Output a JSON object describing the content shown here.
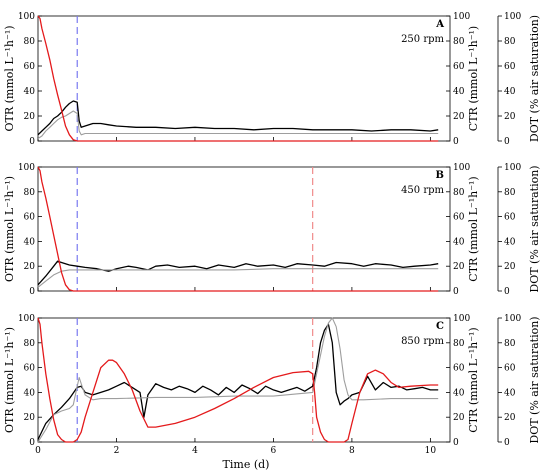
{
  "chart_data": [
    {
      "type": "line",
      "panel_label": "A",
      "annotation": "250 rpm",
      "ylabel_left": "OTR (mmol L⁻¹h⁻¹)",
      "ylabel_mid": "CTR (mmol L⁻¹h⁻¹)",
      "ylabel_right": "DOT (% air saturation)",
      "ylim": [
        0,
        100
      ],
      "xlim": [
        0,
        10.5
      ],
      "y_ticks": [
        "0",
        "20",
        "40",
        "60",
        "80",
        "100"
      ],
      "vlines": [
        {
          "x": 1.0,
          "color": "#7b7bf0"
        }
      ],
      "series": [
        {
          "key": "OTR",
          "color": "#000000",
          "x": [
            0,
            0.1,
            0.2,
            0.3,
            0.4,
            0.5,
            0.6,
            0.7,
            0.8,
            0.9,
            1.0,
            1.05,
            1.1,
            1.2,
            1.4,
            1.6,
            1.8,
            2.0,
            2.5,
            3.0,
            3.5,
            4.0,
            4.5,
            5.0,
            5.5,
            6.0,
            6.5,
            7.0,
            7.5,
            8.0,
            8.5,
            9.0,
            9.5,
            10.0,
            10.2
          ],
          "y": [
            5,
            8,
            11,
            14,
            18,
            20,
            23,
            27,
            30,
            32,
            31,
            16,
            11,
            12,
            14,
            14,
            13,
            12,
            11,
            11,
            10,
            11,
            10,
            10,
            9,
            10,
            10,
            9,
            9,
            9,
            8,
            9,
            9,
            8,
            9
          ]
        },
        {
          "key": "CTR",
          "color": "#9e9e9e",
          "x": [
            0,
            0.1,
            0.2,
            0.3,
            0.4,
            0.5,
            0.6,
            0.7,
            0.8,
            0.9,
            1.0,
            1.05,
            1.1,
            1.2,
            1.5,
            2.0,
            3.0,
            4.0,
            5.0,
            6.0,
            7.0,
            8.0,
            9.0,
            10.0,
            10.2
          ],
          "y": [
            2,
            4,
            8,
            11,
            14,
            17,
            19,
            20,
            22,
            24,
            22,
            8,
            5,
            6,
            6,
            6,
            6,
            6,
            6,
            6,
            6,
            6,
            6,
            6,
            6
          ]
        },
        {
          "key": "DOT",
          "color": "#e41a1c",
          "x": [
            0,
            0.05,
            0.1,
            0.2,
            0.3,
            0.4,
            0.5,
            0.6,
            0.7,
            0.8,
            0.9,
            1.0,
            1.1,
            1.5,
            2.0,
            3.0,
            4.0,
            5.0,
            6.0,
            7.0,
            8.0,
            9.0,
            10.0,
            10.2
          ],
          "y": [
            100,
            98,
            90,
            78,
            65,
            50,
            37,
            25,
            12,
            5,
            1,
            0,
            0,
            0,
            0,
            0,
            0,
            0,
            0,
            0,
            0,
            0,
            0,
            0
          ]
        }
      ]
    },
    {
      "type": "line",
      "panel_label": "B",
      "annotation": "450 rpm",
      "ylabel_left": "OTR (mmol L⁻¹h⁻¹)",
      "ylabel_mid": "CTR (mmol L⁻¹h⁻¹)",
      "ylabel_right": "DOT (% air saturation)",
      "ylim": [
        0,
        100
      ],
      "xlim": [
        0,
        10.5
      ],
      "y_ticks": [
        "0",
        "20",
        "40",
        "60",
        "80",
        "100"
      ],
      "vlines": [
        {
          "x": 1.0,
          "color": "#7b7bf0"
        },
        {
          "x": 7.0,
          "color": "#f08a8a"
        }
      ],
      "series": [
        {
          "key": "OTR",
          "color": "#000000",
          "x": [
            0,
            0.2,
            0.4,
            0.5,
            0.6,
            0.8,
            1.0,
            1.2,
            1.5,
            1.8,
            2.0,
            2.3,
            2.5,
            2.8,
            3.0,
            3.3,
            3.6,
            4.0,
            4.3,
            4.6,
            5.0,
            5.3,
            5.6,
            6.0,
            6.3,
            6.6,
            7.0,
            7.3,
            7.6,
            8.0,
            8.3,
            8.6,
            9.0,
            9.3,
            9.6,
            10.0,
            10.2
          ],
          "y": [
            5,
            12,
            20,
            24,
            23,
            21,
            20,
            19,
            18,
            16,
            18,
            20,
            19,
            17,
            20,
            21,
            19,
            20,
            18,
            21,
            19,
            22,
            20,
            21,
            19,
            22,
            21,
            20,
            23,
            22,
            20,
            22,
            21,
            19,
            20,
            21,
            22
          ]
        },
        {
          "key": "CTR",
          "color": "#9e9e9e",
          "x": [
            0,
            0.2,
            0.4,
            0.6,
            0.8,
            1.0,
            1.5,
            2.0,
            3.0,
            4.0,
            5.0,
            6.0,
            7.0,
            8.0,
            9.0,
            10.0,
            10.2
          ],
          "y": [
            3,
            8,
            13,
            16,
            17,
            17,
            17,
            17,
            17,
            17,
            17,
            18,
            18,
            18,
            18,
            18,
            18
          ]
        },
        {
          "key": "DOT",
          "color": "#e41a1c",
          "x": [
            0,
            0.05,
            0.1,
            0.2,
            0.3,
            0.4,
            0.5,
            0.6,
            0.7,
            0.8,
            0.9,
            1.0,
            1.5,
            2.0,
            3.0,
            4.0,
            5.0,
            6.0,
            7.0,
            8.0,
            9.0,
            10.0,
            10.2
          ],
          "y": [
            100,
            97,
            88,
            75,
            60,
            45,
            30,
            15,
            5,
            1,
            0,
            0,
            0,
            0,
            0,
            0,
            0,
            0,
            0,
            0,
            0,
            0,
            0
          ]
        }
      ]
    },
    {
      "type": "line",
      "panel_label": "C",
      "annotation": "850 rpm",
      "ylabel_left": "OTR (mmol L⁻¹h⁻¹)",
      "ylabel_mid": "CTR (mmol L⁻¹h⁻¹)",
      "ylabel_right": "DOT (% air saturation)",
      "ylim": [
        0,
        100
      ],
      "xlim": [
        0,
        10.5
      ],
      "y_ticks": [
        "0",
        "20",
        "40",
        "60",
        "80",
        "100"
      ],
      "x_ticks": [
        "0",
        "2",
        "4",
        "6",
        "8",
        "10"
      ],
      "xlabel": "Time (d)",
      "vlines": [
        {
          "x": 1.0,
          "color": "#7b7bf0"
        },
        {
          "x": 7.0,
          "color": "#f08a8a"
        }
      ],
      "series": [
        {
          "key": "OTR",
          "color": "#000000",
          "x": [
            0,
            0.2,
            0.4,
            0.6,
            0.8,
            1.0,
            1.1,
            1.2,
            1.4,
            1.6,
            1.8,
            2.0,
            2.2,
            2.4,
            2.6,
            2.7,
            2.8,
            3.0,
            3.2,
            3.4,
            3.6,
            3.8,
            4.0,
            4.2,
            4.4,
            4.6,
            4.8,
            5.0,
            5.2,
            5.4,
            5.6,
            5.8,
            6.0,
            6.2,
            6.4,
            6.6,
            6.8,
            7.0,
            7.1,
            7.2,
            7.3,
            7.4,
            7.5,
            7.6,
            7.7,
            7.8,
            7.9,
            8.0,
            8.2,
            8.4,
            8.6,
            8.8,
            9.0,
            9.2,
            9.4,
            9.6,
            9.8,
            10.0,
            10.2
          ],
          "y": [
            2,
            15,
            22,
            28,
            35,
            44,
            45,
            40,
            38,
            40,
            42,
            45,
            48,
            44,
            40,
            20,
            38,
            47,
            44,
            42,
            45,
            43,
            40,
            45,
            42,
            38,
            44,
            40,
            46,
            43,
            39,
            45,
            42,
            40,
            42,
            44,
            41,
            45,
            60,
            80,
            90,
            95,
            80,
            40,
            30,
            33,
            35,
            38,
            40,
            53,
            42,
            48,
            44,
            45,
            42,
            43,
            44,
            42,
            42
          ]
        },
        {
          "key": "CTR",
          "color": "#9e9e9e",
          "x": [
            0,
            0.2,
            0.4,
            0.6,
            0.8,
            0.9,
            1.0,
            1.05,
            1.1,
            1.2,
            1.4,
            1.6,
            2.0,
            3.0,
            4.0,
            5.0,
            6.0,
            7.0,
            7.1,
            7.2,
            7.3,
            7.4,
            7.5,
            7.6,
            7.7,
            7.8,
            7.9,
            8.0,
            8.3,
            9.0,
            10.0,
            10.2
          ],
          "y": [
            0,
            10,
            22,
            25,
            27,
            30,
            45,
            52,
            47,
            38,
            34,
            35,
            35,
            36,
            36,
            37,
            37,
            40,
            55,
            70,
            85,
            96,
            100,
            93,
            75,
            50,
            38,
            34,
            34,
            35,
            35,
            35
          ]
        },
        {
          "key": "DOT",
          "color": "#e41a1c",
          "x": [
            0,
            0.05,
            0.1,
            0.2,
            0.3,
            0.4,
            0.5,
            0.6,
            0.7,
            0.8,
            0.9,
            1.0,
            1.1,
            1.2,
            1.4,
            1.6,
            1.8,
            1.9,
            2.0,
            2.2,
            2.4,
            2.6,
            2.8,
            3.0,
            3.5,
            4.0,
            4.5,
            5.0,
            5.5,
            6.0,
            6.5,
            6.9,
            7.0,
            7.05,
            7.1,
            7.2,
            7.3,
            7.4,
            7.5,
            7.6,
            7.8,
            7.9,
            8.0,
            8.2,
            8.4,
            8.6,
            8.8,
            9.0,
            9.2,
            9.5,
            10.0,
            10.2
          ],
          "y": [
            100,
            95,
            80,
            55,
            35,
            18,
            6,
            2,
            0,
            0,
            0,
            2,
            8,
            20,
            40,
            60,
            66,
            66,
            64,
            55,
            42,
            25,
            12,
            12,
            15,
            20,
            27,
            35,
            44,
            52,
            56,
            57,
            55,
            40,
            20,
            8,
            2,
            0,
            0,
            0,
            0,
            2,
            15,
            40,
            55,
            58,
            55,
            48,
            44,
            45,
            46,
            46
          ]
        }
      ]
    }
  ]
}
